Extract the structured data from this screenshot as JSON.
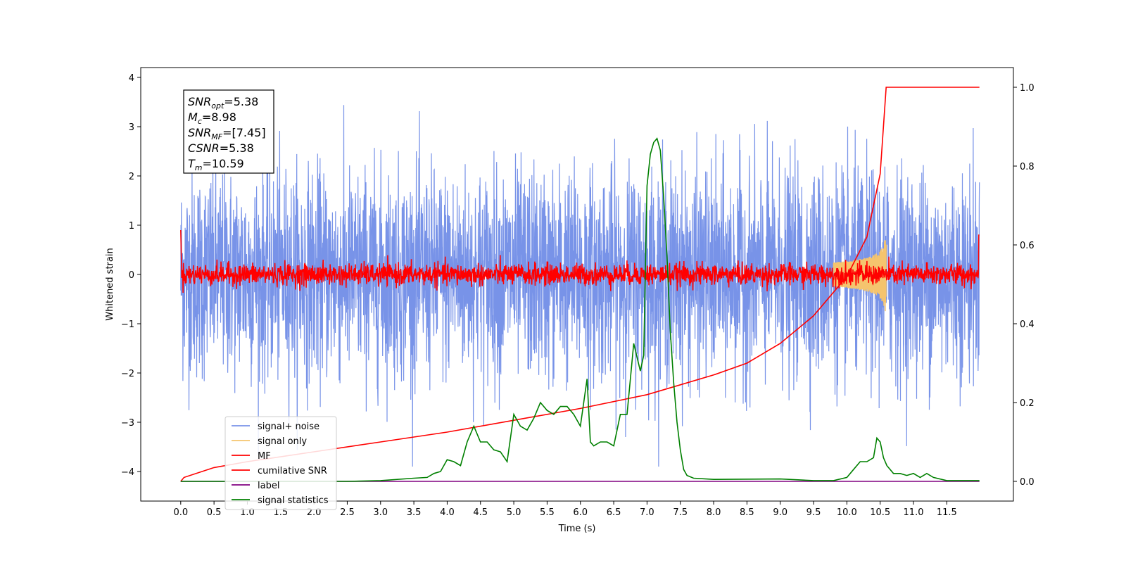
{
  "chart_data": {
    "type": "line",
    "xlabel": "Time (s)",
    "ylabel": "Whitened strain",
    "y2label": "",
    "xlim": [
      -0.6,
      12.5
    ],
    "ylim": [
      -4.6,
      4.2
    ],
    "y2lim": [
      -0.05,
      1.05
    ],
    "x_ticks": [
      "0.0",
      "0.5",
      "1.0",
      "1.5",
      "2.0",
      "2.5",
      "3.0",
      "3.5",
      "4.0",
      "4.5",
      "5.0",
      "5.5",
      "6.0",
      "6.5",
      "7.0",
      "7.5",
      "8.0",
      "8.5",
      "9.0",
      "9.5",
      "10.0",
      "10.5",
      "11.0",
      "11.5"
    ],
    "y_ticks": [
      "−4",
      "−3",
      "−2",
      "−1",
      "0",
      "1",
      "2",
      "3",
      "4"
    ],
    "y2_ticks": [
      "0.0",
      "0.2",
      "0.4",
      "0.6",
      "0.8",
      "1.0"
    ],
    "legend_position": "lower left",
    "series": [
      {
        "name": "signal+ noise",
        "color": "#7893e8",
        "axis": "left",
        "style": "dense noise, amplitude approx ±2.5 with peaks to ±4",
        "x_range": [
          0,
          11.99
        ]
      },
      {
        "name": "signal only",
        "color": "#f5c46e",
        "axis": "left",
        "style": "chirp growing near merger",
        "x_range": [
          9.8,
          10.59
        ],
        "peak_amplitude": 0.9
      },
      {
        "name": "MF",
        "color": "#ff0000",
        "axis": "left",
        "style": "noisy trace approx ±0.3",
        "x_range": [
          0,
          11.99
        ]
      },
      {
        "name": "cumilative SNR",
        "color": "#ff0000",
        "axis": "right",
        "x": [
          0.0,
          0.05,
          0.5,
          1.0,
          2.0,
          3.0,
          4.0,
          5.0,
          6.0,
          7.0,
          7.5,
          8.0,
          8.5,
          9.0,
          9.5,
          10.0,
          10.3,
          10.5,
          10.59,
          11.99
        ],
        "y": [
          0.0,
          0.01,
          0.035,
          0.05,
          0.075,
          0.1,
          0.125,
          0.155,
          0.185,
          0.22,
          0.245,
          0.27,
          0.3,
          0.35,
          0.42,
          0.52,
          0.62,
          0.78,
          1.0,
          1.0
        ]
      },
      {
        "name": "label",
        "color": "#800080",
        "axis": "right",
        "x": [
          0.0,
          11.99
        ],
        "y": [
          0.0,
          0.0
        ]
      },
      {
        "name": "signal statistics",
        "color": "#008000",
        "axis": "right",
        "x": [
          0.0,
          2.5,
          3.0,
          3.5,
          3.7,
          3.8,
          3.9,
          4.0,
          4.1,
          4.2,
          4.3,
          4.4,
          4.5,
          4.6,
          4.7,
          4.8,
          4.9,
          5.0,
          5.1,
          5.2,
          5.3,
          5.4,
          5.5,
          5.6,
          5.7,
          5.8,
          5.9,
          6.0,
          6.1,
          6.15,
          6.2,
          6.3,
          6.4,
          6.5,
          6.6,
          6.7,
          6.8,
          6.9,
          6.95,
          7.0,
          7.05,
          7.1,
          7.15,
          7.2,
          7.25,
          7.3,
          7.35,
          7.4,
          7.45,
          7.5,
          7.55,
          7.6,
          7.7,
          8.0,
          9.0,
          9.5,
          9.8,
          10.0,
          10.1,
          10.2,
          10.3,
          10.4,
          10.45,
          10.5,
          10.55,
          10.6,
          10.7,
          10.8,
          10.9,
          11.0,
          11.1,
          11.2,
          11.3,
          11.5,
          11.99
        ],
        "y": [
          0.0,
          0.0,
          0.002,
          0.008,
          0.01,
          0.02,
          0.025,
          0.055,
          0.05,
          0.04,
          0.1,
          0.14,
          0.1,
          0.1,
          0.08,
          0.075,
          0.05,
          0.17,
          0.14,
          0.13,
          0.16,
          0.2,
          0.18,
          0.17,
          0.19,
          0.19,
          0.17,
          0.14,
          0.26,
          0.1,
          0.09,
          0.1,
          0.1,
          0.09,
          0.17,
          0.17,
          0.35,
          0.28,
          0.32,
          0.75,
          0.83,
          0.86,
          0.87,
          0.84,
          0.72,
          0.57,
          0.38,
          0.25,
          0.15,
          0.08,
          0.03,
          0.015,
          0.008,
          0.005,
          0.006,
          0.002,
          0.002,
          0.01,
          0.03,
          0.05,
          0.05,
          0.06,
          0.11,
          0.1,
          0.06,
          0.04,
          0.02,
          0.02,
          0.015,
          0.02,
          0.01,
          0.02,
          0.01,
          0.002,
          0.002
        ]
      }
    ],
    "annotation": {
      "lines": [
        {
          "base": "SNR",
          "sub": "opt",
          "value": "=5.38"
        },
        {
          "base": "M",
          "sub": "c",
          "value": "=8.98"
        },
        {
          "base": "SNR",
          "sub": "MF",
          "value": "=[7.45]"
        },
        {
          "base": "CSNR",
          "sub": "",
          "value": "=5.38"
        },
        {
          "base": "T",
          "sub": "m",
          "value": "=10.59"
        }
      ]
    }
  }
}
